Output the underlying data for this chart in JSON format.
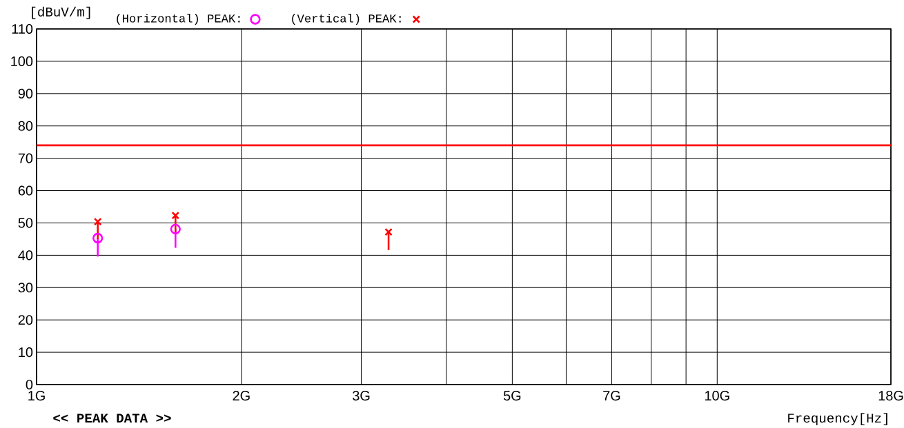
{
  "chart_data": {
    "type": "scatter",
    "xlabel": "Frequency[Hz]",
    "ylabel": "[dBuV/m]",
    "annotations": [
      "<< PEAK DATA >>"
    ],
    "log": "x",
    "grid": true,
    "legend": "top",
    "xlim": [
      1,
      18
    ],
    "xticks": [
      {
        "value": 1,
        "label": "1G"
      },
      {
        "value": 2,
        "label": "2G"
      },
      {
        "value": 3,
        "label": "3G"
      },
      {
        "value": 4,
        "label": null
      },
      {
        "value": 5,
        "label": "5G"
      },
      {
        "value": 6,
        "label": null
      },
      {
        "value": 7,
        "label": "7G"
      },
      {
        "value": 8,
        "label": null
      },
      {
        "value": 9,
        "label": null
      },
      {
        "value": 10,
        "label": "10G"
      },
      {
        "value": 18,
        "label": "18G"
      }
    ],
    "ylim": [
      0,
      110
    ],
    "yticks": [
      0,
      10,
      20,
      30,
      40,
      50,
      60,
      70,
      80,
      90,
      100,
      110
    ],
    "ref_lines": [
      {
        "axis": "y",
        "value": 74,
        "color": "#ff0000"
      }
    ],
    "series": [
      {
        "name": "(Horizontal) PEAK:",
        "color": "#ff00ff",
        "marker": "circle",
        "x": [
          1.23,
          1.6
        ],
        "values": [
          45.3,
          48.1
        ],
        "errors": [
          [
            39.6,
            45.3
          ],
          [
            42.3,
            48.1
          ]
        ]
      },
      {
        "name": "(Vertical) PEAK:",
        "color": "#ff0000",
        "marker": "cross",
        "x": [
          1.23,
          1.6,
          3.29
        ],
        "values": [
          50.4,
          52.3,
          47.2
        ],
        "errors": [
          [
            45,
            50.4
          ],
          [
            47,
            52.3
          ],
          [
            41.6,
            47.2
          ]
        ]
      }
    ]
  }
}
